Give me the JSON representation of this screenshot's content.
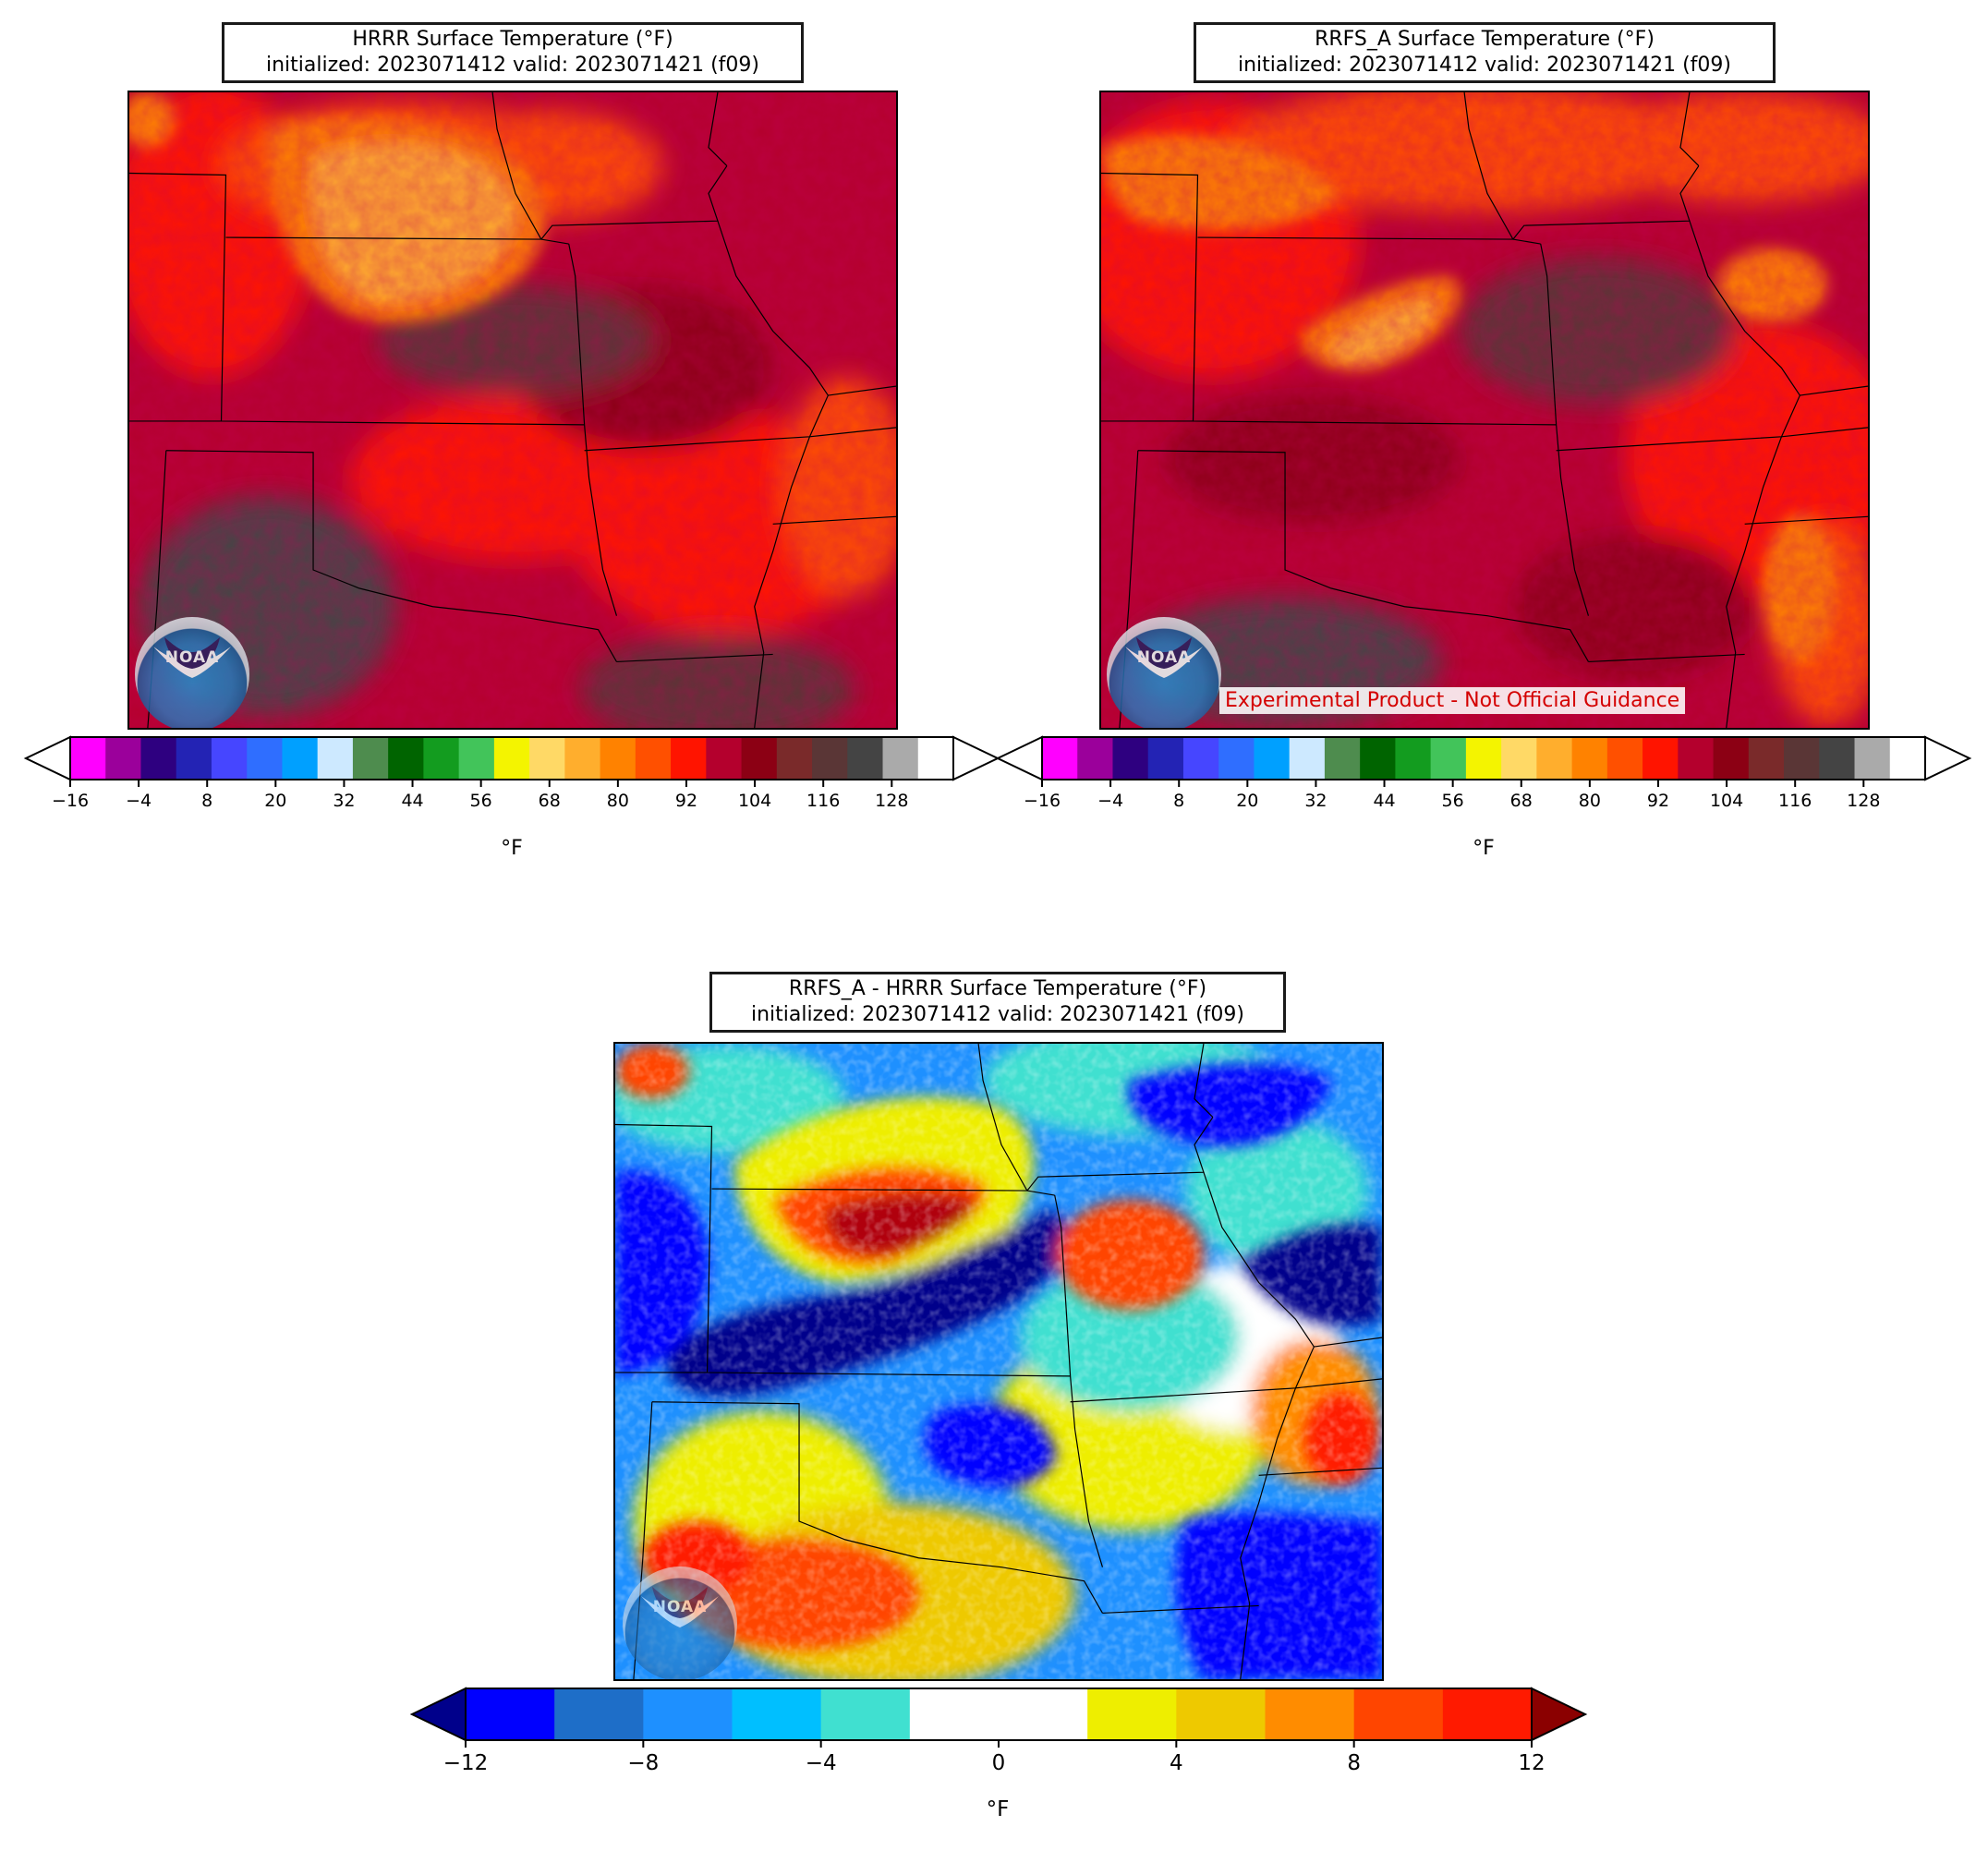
{
  "panels": {
    "hrrr": {
      "title_line1": "HRRR Surface Temperature (°F)",
      "title_line2": "initialized: 2023071412 valid: 2023071421 (f09)"
    },
    "rrfs": {
      "title_line1": "RRFS_A Surface Temperature (°F)",
      "title_line2": "initialized: 2023071412 valid: 2023071421 (f09)",
      "disclaimer": "Experimental Product - Not Official Guidance"
    },
    "diff": {
      "title_line1": "RRFS_A - HRRR Surface Temperature (°F)",
      "title_line2": "initialized: 2023071412 valid: 2023071421 (f09)"
    }
  },
  "logo_text": "NOAA",
  "temp_colorbar": {
    "unit": "°F",
    "tick_labels": [
      "−16",
      "−4",
      "8",
      "20",
      "32",
      "44",
      "56",
      "68",
      "80",
      "92",
      "104",
      "116",
      "128"
    ],
    "colors": [
      "#ff00ff",
      "#9b009b",
      "#2e0080",
      "#2323b4",
      "#4646ff",
      "#2f6eff",
      "#00a0ff",
      "#cde9ff",
      "#4e8c4e",
      "#006400",
      "#139c1f",
      "#42c45a",
      "#f4f400",
      "#ffd966",
      "#ffae2d",
      "#ff8200",
      "#ff5000",
      "#ff1400",
      "#b4002d",
      "#8c0014",
      "#7a2a2a",
      "#5a3636",
      "#444444",
      "#aaaaaa",
      "#ffffff"
    ],
    "extend_min_color": "#ffffff",
    "extend_max_color": "#ffffff"
  },
  "diff_colorbar": {
    "unit": "°F",
    "tick_labels": [
      "−12",
      "−8",
      "−4",
      "0",
      "4",
      "8",
      "12"
    ],
    "colors": [
      "#0000ff",
      "#1e6ec8",
      "#1e90ff",
      "#00bfff",
      "#40e0d0",
      "#ffffff",
      "#ffffff",
      "#eeee00",
      "#eec900",
      "#ff8c00",
      "#ff4500",
      "#ff1a00"
    ],
    "extend_min_color": "#00008b",
    "extend_max_color": "#8b0000"
  }
}
